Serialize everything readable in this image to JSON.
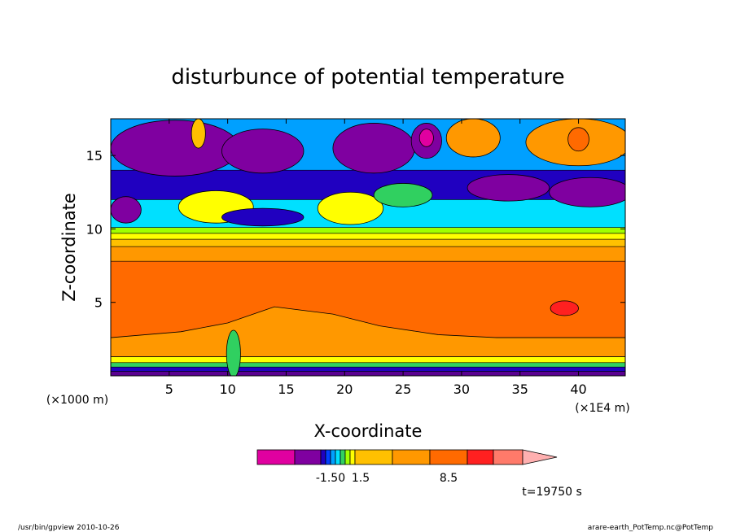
{
  "chart_data": {
    "type": "heatmap",
    "title": "disturbunce of potential temperature",
    "xlabel": "X-coordinate",
    "ylabel": "Z-coordinate",
    "x_ticks": [
      5,
      10,
      15,
      20,
      25,
      30,
      35,
      40
    ],
    "y_ticks": [
      5,
      10,
      15
    ],
    "xlim": [
      0,
      44
    ],
    "ylim": [
      0,
      17.5
    ],
    "x_unit_left": "(×1000 m)",
    "x_unit_right": "(×1E4 m)",
    "colorbar": {
      "labels": [
        "-1.50",
        "1.5",
        "8.5"
      ],
      "colors": [
        "#e000a0",
        "#7f00a0",
        "#2000c0",
        "#0040ff",
        "#00a0ff",
        "#00e0ff",
        "#30d060",
        "#a0ff00",
        "#ffff00",
        "#ffc000",
        "#ff9800",
        "#ff6a00",
        "#ff2020",
        "#ff7a6a",
        "#ffb0b0"
      ]
    },
    "layers": [
      {
        "z0": 0.0,
        "z1": 0.3,
        "color": "#5a0090"
      },
      {
        "z0": 0.3,
        "z1": 0.6,
        "color": "#2000c0"
      },
      {
        "z0": 0.6,
        "z1": 0.9,
        "color": "#30d060"
      },
      {
        "z0": 0.9,
        "z1": 1.3,
        "color": "#ffff00"
      },
      {
        "z0": 1.3,
        "z1": 2.6,
        "color": "#ff9800"
      },
      {
        "z0": 2.6,
        "z1": 7.8,
        "color": "#ff6a00"
      },
      {
        "z0": 7.8,
        "z1": 8.8,
        "color": "#ff9800"
      },
      {
        "z0": 8.8,
        "z1": 9.3,
        "color": "#ffc000"
      },
      {
        "z0": 9.3,
        "z1": 9.7,
        "color": "#ffff00"
      },
      {
        "z0": 9.7,
        "z1": 10.1,
        "color": "#a0ff00"
      },
      {
        "z0": 10.1,
        "z1": 12.0,
        "color": "#00e0ff"
      },
      {
        "z0": 12.0,
        "z1": 14.0,
        "color": "#2000c0"
      },
      {
        "z0": 14.0,
        "z1": 17.5,
        "color": "#00a0ff"
      }
    ],
    "blobs": [
      {
        "x": 5.5,
        "z": 15.5,
        "rx": 5.5,
        "rz": 1.9,
        "color": "#7f00a0"
      },
      {
        "x": 13,
        "z": 15.3,
        "rx": 3.5,
        "rz": 1.5,
        "color": "#7f00a0"
      },
      {
        "x": 22.5,
        "z": 15.5,
        "rx": 3.5,
        "rz": 1.7,
        "color": "#7f00a0"
      },
      {
        "x": 27,
        "z": 16.0,
        "rx": 1.3,
        "rz": 1.2,
        "color": "#7f00a0"
      },
      {
        "x": 27,
        "z": 16.2,
        "rx": 0.6,
        "rz": 0.6,
        "color": "#e000a0"
      },
      {
        "x": 31,
        "z": 16.2,
        "rx": 2.3,
        "rz": 1.3,
        "color": "#ff9800"
      },
      {
        "x": 40,
        "z": 15.9,
        "rx": 4.5,
        "rz": 1.6,
        "color": "#ff9800"
      },
      {
        "x": 40,
        "z": 16.1,
        "rx": 0.9,
        "rz": 0.8,
        "color": "#ff6a00"
      },
      {
        "x": 34,
        "z": 12.8,
        "rx": 3.5,
        "rz": 0.9,
        "color": "#7f00a0"
      },
      {
        "x": 41,
        "z": 12.5,
        "rx": 3.5,
        "rz": 1.0,
        "color": "#7f00a0"
      },
      {
        "x": 1.3,
        "z": 11.3,
        "rx": 1.3,
        "rz": 0.9,
        "color": "#7f00a0"
      },
      {
        "x": 9,
        "z": 11.5,
        "rx": 3.2,
        "rz": 1.1,
        "color": "#ffff00"
      },
      {
        "x": 13,
        "z": 10.8,
        "rx": 3.5,
        "rz": 0.6,
        "color": "#2000c0"
      },
      {
        "x": 20.5,
        "z": 11.4,
        "rx": 2.8,
        "rz": 1.1,
        "color": "#ffff00"
      },
      {
        "x": 25,
        "z": 12.3,
        "rx": 2.5,
        "rz": 0.8,
        "color": "#30d060"
      },
      {
        "x": 7.5,
        "z": 16.5,
        "rx": 0.6,
        "rz": 1.0,
        "color": "#ffc000"
      },
      {
        "x": 38.8,
        "z": 4.6,
        "rx": 1.2,
        "rz": 0.5,
        "color": "#ff2020"
      },
      {
        "x": 10.5,
        "z": 1.5,
        "rx": 0.6,
        "rz": 1.6,
        "color": "#30d060"
      }
    ],
    "bump": [
      [
        0,
        2.6
      ],
      [
        6,
        3.0
      ],
      [
        10,
        3.6
      ],
      [
        14,
        4.7
      ],
      [
        19,
        4.2
      ],
      [
        23,
        3.4
      ],
      [
        28,
        2.8
      ],
      [
        33,
        2.6
      ],
      [
        44,
        2.6
      ]
    ],
    "time_label": "t=19750 s"
  },
  "footer": {
    "left": "/usr/bin/gpview  2010-10-26",
    "right": "arare-earth_PotTemp.nc@PotTemp"
  }
}
